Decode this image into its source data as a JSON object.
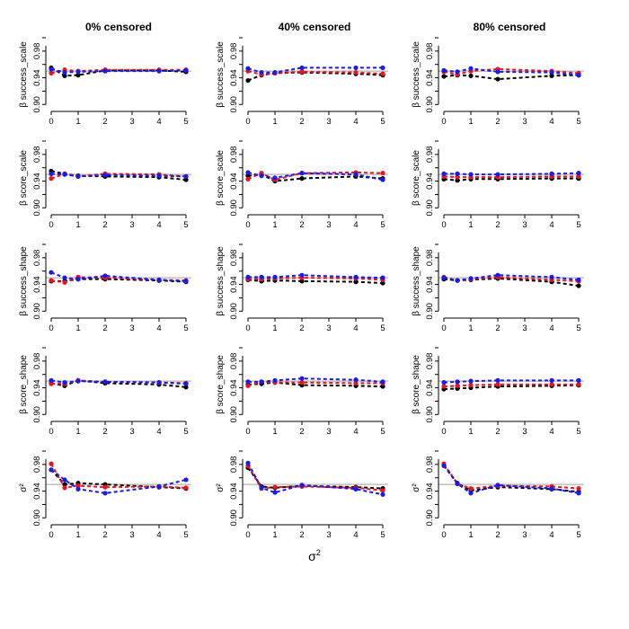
{
  "chart_data": {
    "type": "line",
    "layout": "grid 5 rows x 3 columns",
    "columns": [
      "0% censored",
      "40% censored",
      "80% censored"
    ],
    "rows": [
      {
        "ylabel": "β success_scale"
      },
      {
        "ylabel": "β score_scale"
      },
      {
        "ylabel": "β success_shape"
      },
      {
        "ylabel": "β score_shape"
      },
      {
        "ylabel": "σ²"
      }
    ],
    "x": [
      0,
      0.5,
      1,
      2,
      4,
      5
    ],
    "xticks": [
      0,
      1,
      2,
      3,
      4,
      5
    ],
    "xlim": [
      -0.2,
      5.2
    ],
    "ylim": [
      0.895,
      1.0
    ],
    "yticks": [
      0.9,
      0.94,
      0.98
    ],
    "ytick_labels": [
      "0.90",
      "0.94",
      "0.98"
    ],
    "reference_line": 0.95,
    "xlabel_main": "σ",
    "xlabel_sup": "2",
    "series_colors": {
      "black": "#000000",
      "red": "#e8141e",
      "blue": "#1a1aeb",
      "reference": "#b4b4b4"
    },
    "panels": [
      [
        {
          "black": [
            0.955,
            0.943,
            0.944,
            0.951,
            0.951,
            0.949
          ],
          "red": [
            0.947,
            0.952,
            0.95,
            0.952,
            0.952,
            0.952
          ],
          "blue": [
            0.953,
            0.948,
            0.949,
            0.95,
            0.95,
            0.951
          ]
        },
        {
          "black": [
            0.955,
            0.951,
            0.948,
            0.947,
            0.946,
            0.942
          ],
          "red": [
            0.944,
            0.951,
            0.947,
            0.951,
            0.95,
            0.947
          ],
          "blue": [
            0.951,
            0.95,
            0.947,
            0.949,
            0.948,
            0.947
          ]
        },
        {
          "black": [
            0.945,
            0.945,
            0.948,
            0.948,
            0.946,
            0.944
          ],
          "red": [
            0.946,
            0.943,
            0.951,
            0.95,
            0.947,
            0.946
          ],
          "blue": [
            0.958,
            0.95,
            0.948,
            0.953,
            0.947,
            0.945
          ]
        },
        {
          "black": [
            0.947,
            0.943,
            0.951,
            0.947,
            0.945,
            0.941
          ],
          "red": [
            0.946,
            0.946,
            0.951,
            0.949,
            0.948,
            0.947
          ],
          "blue": [
            0.951,
            0.948,
            0.95,
            0.949,
            0.948,
            0.946
          ]
        },
        {
          "black": [
            0.972,
            0.95,
            0.952,
            0.95,
            0.946,
            0.944
          ],
          "red": [
            0.981,
            0.945,
            0.948,
            0.946,
            0.947,
            0.945
          ],
          "blue": [
            0.972,
            0.957,
            0.943,
            0.937,
            0.947,
            0.957
          ]
        }
      ],
      [
        {
          "black": [
            0.936,
            0.944,
            0.947,
            0.948,
            0.946,
            0.944
          ],
          "red": [
            0.95,
            0.945,
            0.947,
            0.949,
            0.948,
            0.946
          ],
          "blue": [
            0.954,
            0.948,
            0.948,
            0.955,
            0.955,
            0.955
          ]
        },
        {
          "black": [
            0.948,
            0.95,
            0.94,
            0.944,
            0.947,
            0.944
          ],
          "red": [
            0.943,
            0.952,
            0.942,
            0.952,
            0.953,
            0.952
          ],
          "blue": [
            0.953,
            0.948,
            0.945,
            0.952,
            0.95,
            0.942
          ]
        },
        {
          "black": [
            0.947,
            0.945,
            0.946,
            0.945,
            0.944,
            0.942
          ],
          "red": [
            0.948,
            0.948,
            0.949,
            0.95,
            0.949,
            0.947
          ],
          "blue": [
            0.951,
            0.951,
            0.951,
            0.954,
            0.951,
            0.95
          ]
        },
        {
          "black": [
            0.945,
            0.946,
            0.948,
            0.944,
            0.943,
            0.942
          ],
          "red": [
            0.943,
            0.949,
            0.948,
            0.948,
            0.947,
            0.947
          ],
          "blue": [
            0.949,
            0.949,
            0.951,
            0.954,
            0.952,
            0.949
          ]
        },
        {
          "black": [
            0.975,
            0.947,
            0.945,
            0.948,
            0.946,
            0.944
          ],
          "red": [
            0.978,
            0.944,
            0.946,
            0.947,
            0.945,
            0.941
          ],
          "blue": [
            0.982,
            0.945,
            0.938,
            0.949,
            0.943,
            0.935
          ]
        }
      ],
      [
        {
          "black": [
            0.942,
            0.944,
            0.943,
            0.938,
            0.943,
            0.944
          ],
          "red": [
            0.949,
            0.945,
            0.95,
            0.953,
            0.95,
            0.947
          ],
          "blue": [
            0.951,
            0.949,
            0.954,
            0.949,
            0.948,
            0.944
          ]
        },
        {
          "black": [
            0.943,
            0.941,
            0.943,
            0.943,
            0.944,
            0.944
          ],
          "red": [
            0.947,
            0.946,
            0.946,
            0.946,
            0.947,
            0.947
          ],
          "blue": [
            0.951,
            0.951,
            0.95,
            0.95,
            0.951,
            0.952
          ]
        },
        {
          "black": [
            0.948,
            0.946,
            0.947,
            0.949,
            0.944,
            0.938
          ],
          "red": [
            0.951,
            0.946,
            0.948,
            0.951,
            0.947,
            0.945
          ],
          "blue": [
            0.95,
            0.946,
            0.949,
            0.954,
            0.951,
            0.947
          ]
        },
        {
          "black": [
            0.938,
            0.939,
            0.94,
            0.942,
            0.943,
            0.944
          ],
          "red": [
            0.942,
            0.943,
            0.944,
            0.945,
            0.945,
            0.945
          ],
          "blue": [
            0.948,
            0.949,
            0.95,
            0.951,
            0.951,
            0.951
          ]
        },
        {
          "black": [
            0.979,
            0.952,
            0.941,
            0.946,
            0.943,
            0.939
          ],
          "red": [
            0.981,
            0.951,
            0.944,
            0.948,
            0.947,
            0.944
          ],
          "blue": [
            0.978,
            0.951,
            0.937,
            0.949,
            0.944,
            0.937
          ]
        }
      ]
    ]
  }
}
